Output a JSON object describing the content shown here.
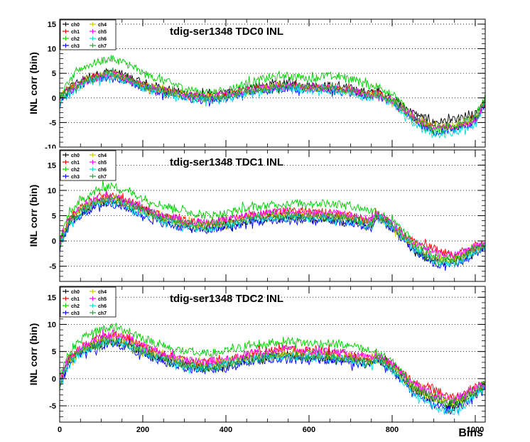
{
  "panels": [
    {
      "title": "tdig-ser1348 TDC0 INL",
      "ylabel": "INL corr (bin)",
      "ylim": [
        -10,
        16
      ],
      "yticks": [
        -10,
        -5,
        0,
        5,
        10,
        15
      ],
      "yticklabels": [
        "-10",
        "-5",
        "0",
        "5",
        "10",
        "15"
      ],
      "legend": [
        "ch0",
        "ch1",
        "ch2",
        "ch3",
        "ch4",
        "ch5",
        "ch6",
        "ch7"
      ]
    },
    {
      "title": "tdig-ser1348 TDC1 INL",
      "ylabel": "INL corr (bin)",
      "ylim": [
        -8,
        18
      ],
      "yticks": [
        -5,
        0,
        5,
        10,
        15
      ],
      "yticklabels": [
        "-5",
        "0",
        "5",
        "10",
        "15"
      ],
      "legend": [
        "ch0",
        "ch1",
        "ch2",
        "ch3",
        "ch4",
        "ch5",
        "ch6",
        "ch7"
      ]
    },
    {
      "title": "tdig-ser1348 TDC2 INL",
      "ylabel": "INL corr (bin)",
      "ylim": [
        -8,
        17
      ],
      "yticks": [
        -5,
        0,
        5,
        10,
        15
      ],
      "yticklabels": [
        "-5",
        "0",
        "5",
        "10",
        "15"
      ],
      "legend": [
        "ch0",
        "ch1",
        "ch2",
        "ch3",
        "ch4",
        "ch5",
        "ch6",
        "ch7"
      ]
    }
  ],
  "xaxis": {
    "label": "Bins",
    "xlim": [
      0,
      1024
    ],
    "ticks": [
      0,
      200,
      400,
      600,
      800,
      1000
    ],
    "ticklabels": [
      "0",
      "200",
      "400",
      "600",
      "800",
      "1000"
    ]
  },
  "colors": {
    "ch0": "#000000",
    "ch1": "#ff0000",
    "ch2": "#00cc00",
    "ch3": "#0000ff",
    "ch4": "#cccc00",
    "ch5": "#ff00ff",
    "ch6": "#00e0e0",
    "ch7": "#339933"
  },
  "chart_data": [
    {
      "type": "line",
      "title": "tdig-ser1348 TDC0 INL",
      "ylabel": "INL corr (bin)",
      "x": [
        0,
        20,
        50,
        80,
        120,
        160,
        200,
        250,
        300,
        350,
        400,
        450,
        500,
        550,
        600,
        650,
        700,
        750,
        760,
        800,
        850,
        900,
        950,
        1000,
        1024
      ],
      "series": [
        {
          "name": "ch0",
          "color": "#000000",
          "values": [
            -0.5,
            2,
            3.5,
            4.5,
            5.5,
            4.5,
            3,
            2,
            1,
            0.5,
            1,
            2,
            2.5,
            3,
            2.5,
            2.5,
            2,
            1,
            1.5,
            0,
            -3,
            -5,
            -4.5,
            -3.5,
            0
          ]
        },
        {
          "name": "ch1",
          "color": "#ff0000",
          "values": [
            -0.5,
            1.5,
            3,
            4,
            5,
            4,
            2.5,
            1.5,
            0.5,
            0,
            0.5,
            1.5,
            2,
            2.5,
            2,
            2,
            1.5,
            0.5,
            1,
            -0.5,
            -4,
            -6,
            -6,
            -4.5,
            -1
          ]
        },
        {
          "name": "ch2",
          "color": "#00cc00",
          "values": [
            0,
            3,
            6,
            7,
            8,
            7,
            5,
            3.5,
            2,
            1,
            1.5,
            3,
            4,
            4.5,
            4,
            4.5,
            4,
            2.5,
            2.5,
            1,
            -4,
            -7,
            -6,
            -4,
            0
          ]
        },
        {
          "name": "ch3",
          "color": "#0000ff",
          "values": [
            -1,
            1,
            2.5,
            3.5,
            4.5,
            3.5,
            2,
            1,
            0,
            -0.5,
            0,
            1,
            1.5,
            2,
            1.5,
            1.5,
            1,
            0,
            0.5,
            -1,
            -4.5,
            -7,
            -6.5,
            -5,
            -1
          ]
        },
        {
          "name": "ch4",
          "color": "#cccc00",
          "values": [
            -0.5,
            1.5,
            3,
            4,
            5,
            4,
            2.5,
            1.5,
            0.5,
            0,
            0.5,
            1.5,
            2,
            2.5,
            2,
            2,
            1.5,
            0.5,
            1,
            -0.5,
            -4,
            -6,
            -5.5,
            -4,
            -0.5
          ]
        },
        {
          "name": "ch5",
          "color": "#ff00ff",
          "values": [
            -0.5,
            1.5,
            3,
            4,
            5,
            4,
            2.5,
            1.5,
            0.5,
            0,
            0.5,
            1.5,
            2,
            2.5,
            2,
            2,
            1.5,
            0.5,
            1,
            -0.5,
            -4,
            -6,
            -6,
            -4.5,
            -1
          ]
        },
        {
          "name": "ch6",
          "color": "#00e0e0",
          "values": [
            -1,
            1,
            2.5,
            3.5,
            4.5,
            3.5,
            2,
            1,
            0,
            -0.5,
            0,
            1,
            1.5,
            2,
            1.5,
            1.5,
            1,
            0,
            0.5,
            -1,
            -5,
            -7.5,
            -7,
            -5.5,
            -1
          ]
        },
        {
          "name": "ch7",
          "color": "#339933",
          "values": [
            -0.5,
            1.5,
            3,
            4,
            5,
            4,
            2.5,
            1.5,
            0.5,
            0,
            0.5,
            1.5,
            2,
            2.5,
            2,
            2,
            1.5,
            0.5,
            1,
            -0.5,
            -4,
            -6,
            -5.5,
            -4,
            -0.5
          ]
        }
      ]
    },
    {
      "type": "line",
      "title": "tdig-ser1348 TDC1 INL",
      "ylabel": "INL corr (bin)",
      "x": [
        0,
        20,
        50,
        80,
        120,
        160,
        200,
        250,
        300,
        350,
        400,
        450,
        500,
        550,
        600,
        650,
        700,
        750,
        760,
        800,
        850,
        900,
        950,
        1000,
        1024
      ],
      "series": [
        {
          "name": "ch0",
          "color": "#000000",
          "values": [
            -1,
            3,
            5.5,
            7,
            8,
            7.5,
            6,
            4.5,
            3,
            2.5,
            3,
            4,
            4.5,
            5,
            4.5,
            4.5,
            4,
            3,
            5,
            3,
            -1.5,
            -4,
            -4,
            -2,
            -1
          ]
        },
        {
          "name": "ch1",
          "color": "#ff0000",
          "values": [
            -0.5,
            4,
            6.5,
            8,
            9,
            8,
            6.5,
            5,
            4,
            3.5,
            4,
            5,
            5.5,
            6,
            5.5,
            5.5,
            5,
            4,
            5.5,
            3.5,
            0,
            -1.5,
            -3,
            -1,
            -1
          ]
        },
        {
          "name": "ch2",
          "color": "#00cc00",
          "values": [
            0,
            5,
            8,
            9.5,
            11,
            10,
            8.5,
            7,
            6,
            5,
            5.5,
            6.5,
            7,
            7.5,
            7.5,
            7.5,
            7,
            6,
            6,
            4,
            0,
            -3,
            -3.5,
            -1.5,
            -1
          ]
        },
        {
          "name": "ch3",
          "color": "#0000ff",
          "values": [
            -1.5,
            2.5,
            5,
            6.5,
            7.5,
            6.5,
            5,
            3.5,
            2.5,
            2,
            2.5,
            3.5,
            4,
            4,
            4,
            4,
            3.5,
            2.5,
            4.5,
            2.5,
            -2,
            -4.5,
            -5,
            -2.5,
            -1.5
          ]
        },
        {
          "name": "ch4",
          "color": "#cccc00",
          "values": [
            -1,
            3.5,
            6,
            7.5,
            8.5,
            7.5,
            6,
            4.5,
            3.5,
            3,
            3.5,
            4.5,
            5,
            5,
            5,
            5,
            4.5,
            3.5,
            5,
            3,
            -1,
            -3.5,
            -3.5,
            -1.5,
            -1
          ]
        },
        {
          "name": "ch5",
          "color": "#ff00ff",
          "values": [
            -0.5,
            4,
            6.5,
            8,
            9,
            8,
            6.5,
            5,
            4,
            3.5,
            4,
            5,
            5.5,
            6,
            5.5,
            5.5,
            5,
            4,
            5.5,
            3.5,
            -0.5,
            -2.5,
            -3,
            -1,
            -1
          ]
        },
        {
          "name": "ch6",
          "color": "#00e0e0",
          "values": [
            -1,
            3,
            5.5,
            7,
            8,
            7,
            5.5,
            4,
            3,
            2.5,
            3,
            4,
            4.5,
            4.5,
            4.5,
            4.5,
            4,
            3,
            5,
            3,
            -1.5,
            -4,
            -4.5,
            -2,
            -1
          ]
        },
        {
          "name": "ch7",
          "color": "#339933",
          "values": [
            -1,
            3.5,
            6,
            7.5,
            8.5,
            7.5,
            6,
            4.5,
            3.5,
            3,
            3.5,
            4.5,
            5,
            5,
            5,
            5,
            4.5,
            3.5,
            5,
            3,
            -1,
            -3.5,
            -4,
            -1.5,
            -1
          ]
        }
      ]
    },
    {
      "type": "line",
      "title": "tdig-ser1348 TDC2 INL",
      "ylabel": "INL corr (bin)",
      "x": [
        0,
        20,
        50,
        80,
        120,
        160,
        200,
        250,
        300,
        350,
        400,
        450,
        500,
        550,
        600,
        650,
        700,
        750,
        760,
        800,
        850,
        900,
        950,
        1000,
        1024
      ],
      "series": [
        {
          "name": "ch0",
          "color": "#000000",
          "values": [
            -1,
            3,
            5,
            6,
            7,
            6.5,
            5,
            3.5,
            2.5,
            2,
            2.5,
            3.5,
            4,
            4.5,
            4,
            4,
            3.5,
            3,
            4,
            2,
            -2,
            -4,
            -5,
            -2.5,
            -1
          ]
        },
        {
          "name": "ch1",
          "color": "#ff0000",
          "values": [
            -0.5,
            3.5,
            5.5,
            7,
            8,
            7.5,
            6,
            4.5,
            3.5,
            3,
            3.5,
            4.5,
            5,
            5.5,
            5,
            5,
            4.5,
            3.5,
            4.5,
            2.5,
            -0.5,
            -2,
            -3.5,
            -1.5,
            -1
          ]
        },
        {
          "name": "ch2",
          "color": "#00cc00",
          "values": [
            0,
            4.5,
            7,
            8.5,
            9.5,
            9,
            7.5,
            6,
            5,
            4.5,
            5,
            6,
            6.5,
            7,
            6.5,
            6.5,
            6,
            5,
            5,
            3,
            -1,
            -3.5,
            -4.5,
            -2.5,
            -1
          ]
        },
        {
          "name": "ch3",
          "color": "#0000ff",
          "values": [
            -1.5,
            2.5,
            4.5,
            5.5,
            6.5,
            6,
            4.5,
            3,
            2,
            1.5,
            2,
            3,
            3.5,
            3.5,
            3.5,
            3.5,
            3,
            2.5,
            3.5,
            1.5,
            -2.5,
            -5,
            -6,
            -3,
            -1.5
          ]
        },
        {
          "name": "ch4",
          "color": "#cccc00",
          "values": [
            -1,
            3,
            5,
            6.5,
            7.5,
            7,
            5.5,
            4,
            3,
            2.5,
            3,
            4,
            4.5,
            4.5,
            4.5,
            4.5,
            4,
            3,
            4,
            2,
            -1.5,
            -3.5,
            -4.5,
            -2,
            -1
          ]
        },
        {
          "name": "ch5",
          "color": "#ff00ff",
          "values": [
            -0.5,
            3.5,
            5.5,
            7,
            8,
            7.5,
            6,
            4.5,
            3.5,
            3,
            3.5,
            4.5,
            5,
            5.5,
            5,
            5,
            4.5,
            3.5,
            4.5,
            2.5,
            -1,
            -3,
            -4,
            -1.5,
            -1
          ]
        },
        {
          "name": "ch6",
          "color": "#00e0e0",
          "values": [
            -1,
            2.5,
            4.5,
            6,
            7,
            6.5,
            5,
            3.5,
            2.5,
            2,
            2.5,
            3.5,
            4,
            4,
            4,
            4,
            3.5,
            2.5,
            3.5,
            1.5,
            -2.5,
            -5,
            -6.5,
            -3,
            -1.5
          ]
        },
        {
          "name": "ch7",
          "color": "#339933",
          "values": [
            -1,
            3,
            5,
            6,
            7,
            6.5,
            5,
            3.5,
            2.5,
            2,
            2.5,
            3.5,
            4,
            4.5,
            4,
            4,
            3.5,
            3,
            4,
            2,
            -1.5,
            -3.5,
            -4.5,
            -2,
            -1
          ]
        }
      ]
    }
  ]
}
